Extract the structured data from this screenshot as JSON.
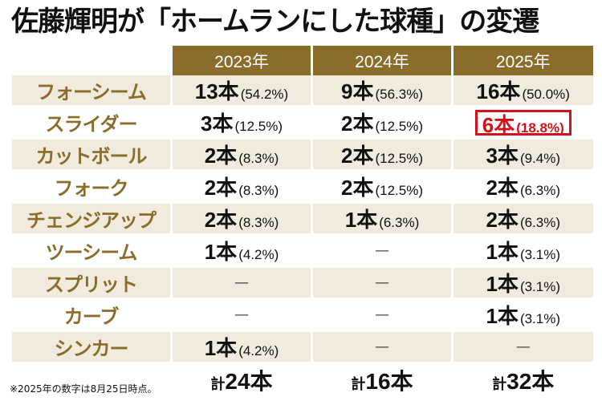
{
  "title": "佐藤輝明が「ホームランにした球種」の変遷",
  "years": [
    "2023年",
    "2024年",
    "2025年"
  ],
  "rows": [
    {
      "pitch": "フォーシーム",
      "cells": [
        {
          "count": "13本",
          "pct": "(54.2%)"
        },
        {
          "count": "9本",
          "pct": "(56.3%)"
        },
        {
          "count": "16本",
          "pct": "(50.0%)"
        }
      ]
    },
    {
      "pitch": "スライダー",
      "cells": [
        {
          "count": "3本",
          "pct": "(12.5%)"
        },
        {
          "count": "2本",
          "pct": "(12.5%)"
        },
        {
          "count": "6本",
          "pct": "(18.8%)",
          "highlight": true
        }
      ]
    },
    {
      "pitch": "カットボール",
      "cells": [
        {
          "count": "2本",
          "pct": "(8.3%)"
        },
        {
          "count": "2本",
          "pct": "(12.5%)"
        },
        {
          "count": "3本",
          "pct": "(9.4%)"
        }
      ]
    },
    {
      "pitch": "フォーク",
      "cells": [
        {
          "count": "2本",
          "pct": "(8.3%)"
        },
        {
          "count": "2本",
          "pct": "(12.5%)"
        },
        {
          "count": "2本",
          "pct": "(6.3%)"
        }
      ]
    },
    {
      "pitch": "チェンジアップ",
      "cells": [
        {
          "count": "2本",
          "pct": "(8.3%)"
        },
        {
          "count": "1本",
          "pct": "(6.3%)"
        },
        {
          "count": "2本",
          "pct": "(6.3%)"
        }
      ]
    },
    {
      "pitch": "ツーシーム",
      "cells": [
        {
          "count": "1本",
          "pct": "(4.2%)"
        },
        {
          "dash": "—"
        },
        {
          "count": "1本",
          "pct": "(3.1%)"
        }
      ]
    },
    {
      "pitch": "スプリット",
      "cells": [
        {
          "dash": "—"
        },
        {
          "dash": "—"
        },
        {
          "count": "1本",
          "pct": "(3.1%)"
        }
      ]
    },
    {
      "pitch": "カーブ",
      "cells": [
        {
          "dash": "—"
        },
        {
          "dash": "—"
        },
        {
          "count": "1本",
          "pct": "(3.1%)"
        }
      ]
    },
    {
      "pitch": "シンカー",
      "cells": [
        {
          "count": "1本",
          "pct": "(4.2%)"
        },
        {
          "dash": "—"
        },
        {
          "dash": "—"
        }
      ]
    }
  ],
  "total_prefix": "計",
  "totals": [
    "24本",
    "16本",
    "32本"
  ],
  "note": "※2025年の数字は8月25日時点。",
  "colors": {
    "header_bg": "#8a6d2a",
    "pitch_text": "#8a6d2a",
    "stripe": "#f0ebdc",
    "highlight": "#d4101a"
  }
}
